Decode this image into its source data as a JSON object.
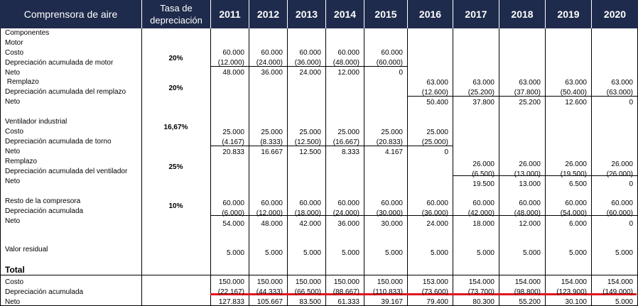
{
  "header": {
    "title": "Comprensora de aire",
    "rate_line1": "Tasa de",
    "rate_line2": "depreciación",
    "years": [
      "2011",
      "2012",
      "2013",
      "2014",
      "2015",
      "2016",
      "2017",
      "2018",
      "2019",
      "2020"
    ]
  },
  "labels": [
    "Componentes",
    "Motor",
    "Costo",
    "Depreciación acumulada de motor",
    "Neto",
    " Remplazo",
    "Depreciación acumulada del remplazo",
    "Neto",
    "Ventilador industrial",
    "Costo",
    "Depreciación acumulada de torno",
    "Neto",
    "Remplazo",
    "Depreciación acumulada del ventilador",
    "Neto",
    "Resto de la compresora",
    "Depreciación acumulada",
    "Neto",
    "Valor residual",
    "Total",
    "Costo",
    "Depreciación acumulada",
    "Neto"
  ],
  "rates": [
    "20%",
    "20%",
    "16,67%",
    "25%",
    "10%"
  ],
  "rows": [
    [
      "60.000",
      "60.000",
      "60.000",
      "60.000",
      "60.000",
      "",
      "",
      "",
      "",
      ""
    ],
    [
      "(12.000)",
      "(24.000)",
      "(36.000)",
      "(48.000)",
      "(60.000)",
      "",
      "",
      "",
      "",
      ""
    ],
    [
      "48.000",
      "36.000",
      "24.000",
      "12.000",
      "0",
      "",
      "",
      "",
      "",
      ""
    ],
    [
      "",
      "",
      "",
      "",
      "",
      "63.000",
      "63.000",
      "63.000",
      "63.000",
      "63.000"
    ],
    [
      "",
      "",
      "",
      "",
      "",
      "(12.600)",
      "(25.200)",
      "(37.800)",
      "(50.400)",
      "(63.000)"
    ],
    [
      "",
      "",
      "",
      "",
      "",
      "50.400",
      "37.800",
      "25.200",
      "12.600",
      "0"
    ],
    [
      "25.000",
      "25.000",
      "25.000",
      "25.000",
      "25.000",
      "25.000",
      "",
      "",
      "",
      ""
    ],
    [
      "(4.167)",
      "(8.333)",
      "(12.500)",
      "(16.667)",
      "(20.833)",
      "(25.000)",
      "",
      "",
      "",
      ""
    ],
    [
      "20.833",
      "16.667",
      "12.500",
      "8.333",
      "4.167",
      "0",
      "",
      "",
      "",
      ""
    ],
    [
      "",
      "",
      "",
      "",
      "",
      "",
      "26.000",
      "26.000",
      "26.000",
      "26.000"
    ],
    [
      "",
      "",
      "",
      "",
      "",
      "",
      "(6.500)",
      "(13.000)",
      "(19.500)",
      "(26.000)"
    ],
    [
      "",
      "",
      "",
      "",
      "",
      "",
      "19.500",
      "13.000",
      "6.500",
      "0"
    ],
    [
      "60.000",
      "60.000",
      "60.000",
      "60.000",
      "60.000",
      "60.000",
      "60.000",
      "60.000",
      "60.000",
      "60.000"
    ],
    [
      "(6.000)",
      "(12.000)",
      "(18.000)",
      "(24.000)",
      "(30.000)",
      "(36.000)",
      "(42.000)",
      "(48.000)",
      "(54.000)",
      "(60.000)"
    ],
    [
      "54.000",
      "48.000",
      "42.000",
      "36.000",
      "30.000",
      "24.000",
      "18.000",
      "12.000",
      "6.000",
      "0"
    ],
    [
      "5.000",
      "5.000",
      "5.000",
      "5.000",
      "5.000",
      "5.000",
      "5.000",
      "5.000",
      "5.000",
      "5.000"
    ],
    [
      "150.000",
      "150.000",
      "150.000",
      "150.000",
      "150.000",
      "153.000",
      "154.000",
      "154.000",
      "154.000",
      "154.000"
    ],
    [
      "(22.167)",
      "(44.333)",
      "(66.500)",
      "(88.667)",
      "(110.833)",
      "(73.600)",
      "(73.700)",
      "(98.800)",
      "(123.900)",
      "(149.000)"
    ],
    [
      "127.833",
      "105.667",
      "83.500",
      "61.333",
      "39.167",
      "79.400",
      "80.300",
      "55.200",
      "30.100",
      "5.000"
    ]
  ],
  "accent": {
    "header_bg": "#1f2b4c",
    "underline": "#e0161e"
  }
}
